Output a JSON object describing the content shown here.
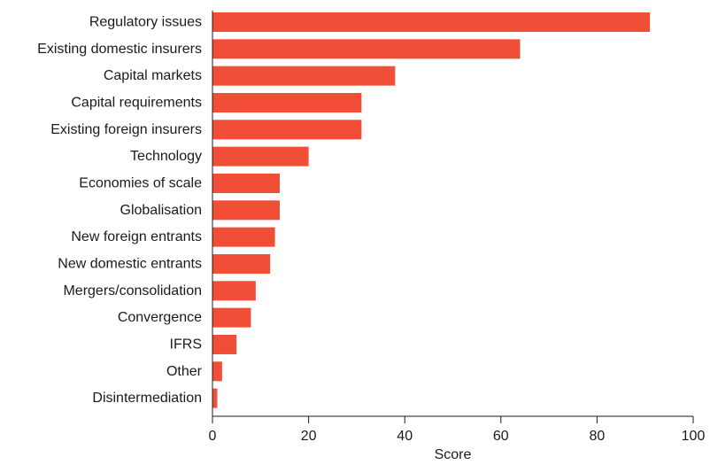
{
  "chart_data": {
    "type": "bar",
    "orientation": "horizontal",
    "categories": [
      "Regulatory issues",
      "Existing domestic insurers",
      "Capital markets",
      "Capital requirements",
      "Existing foreign insurers",
      "Technology",
      "Economies of scale",
      "Globalisation",
      "New foreign entrants",
      "New domestic entrants",
      "Mergers/consolidation",
      "Convergence",
      "IFRS",
      "Other",
      "Disintermediation"
    ],
    "values": [
      91,
      64,
      38,
      31,
      31,
      20,
      14,
      14,
      13,
      12,
      9,
      8,
      5,
      2,
      1
    ],
    "xlabel": "Score",
    "ylabel": "",
    "xlim": [
      0,
      100
    ],
    "xticks": [
      0,
      20,
      40,
      60,
      80,
      100
    ],
    "grid": false,
    "bar_color": "#f04e37"
  }
}
